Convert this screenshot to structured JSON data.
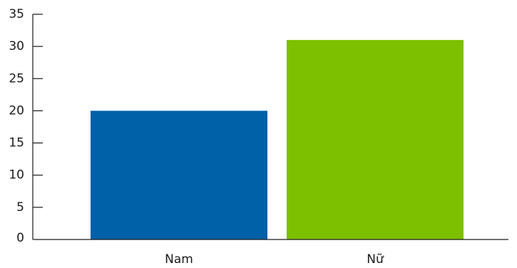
{
  "chart_data": {
    "type": "bar",
    "categories": [
      "Nam",
      "Nữ"
    ],
    "values": [
      20,
      31
    ],
    "colors": [
      "#0060a8",
      "#7dc000"
    ],
    "ylim": [
      0,
      35
    ],
    "yticks": [
      0,
      5,
      10,
      15,
      20,
      25,
      30,
      35
    ],
    "ytick_labels": [
      "0",
      "5",
      "10",
      "15",
      "20",
      "25",
      "30",
      "35"
    ],
    "title": "",
    "xlabel": "",
    "ylabel": "",
    "grid": false,
    "legend": "none"
  }
}
